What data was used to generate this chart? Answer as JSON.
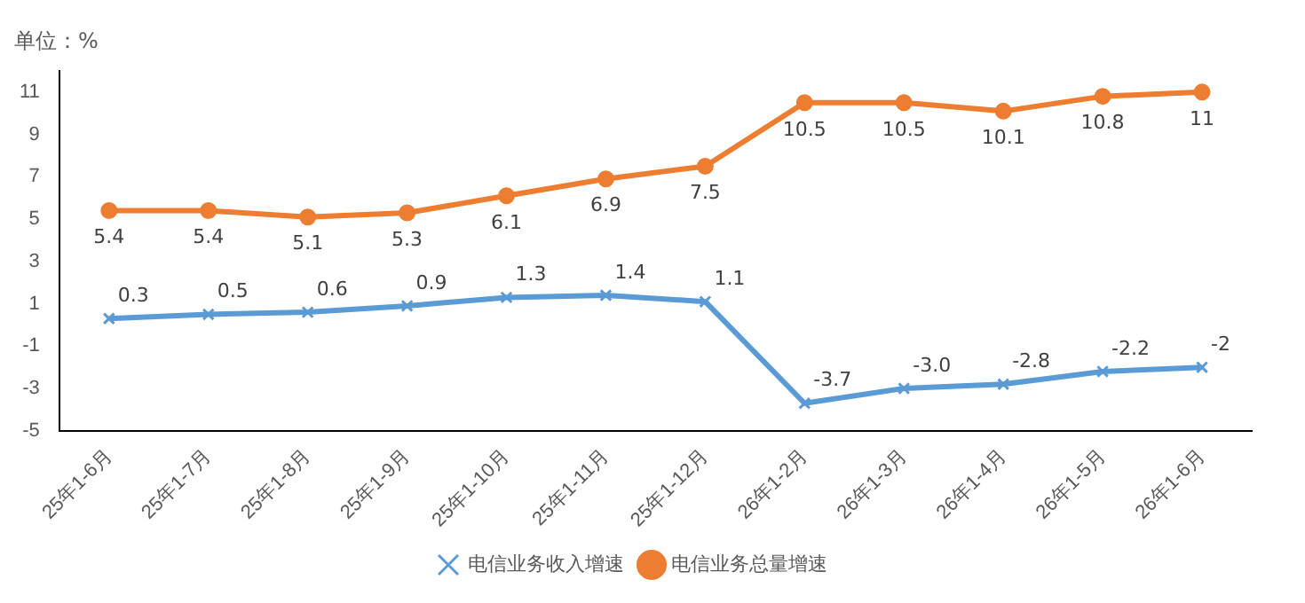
{
  "chart_data": {
    "type": "line",
    "ylabel": "单位：%",
    "categories": [
      "25年1-6月",
      "25年1-7月",
      "25年1-8月",
      "25年1-9月",
      "25年1-10月",
      "25年1-11月",
      "25年1-12月",
      "26年1-2月",
      "26年1-3月",
      "26年1-4月",
      "26年1-5月",
      "26年1-6月"
    ],
    "series": [
      {
        "name": "电信业务收入增速",
        "color": "#5b9bd5",
        "marker": "cross",
        "values": [
          0.3,
          0.5,
          0.6,
          0.9,
          1.3,
          1.4,
          1.1,
          -3.7,
          -3.0,
          -2.8,
          -2.2,
          -2
        ],
        "value_labels": [
          "0.3",
          "0.5",
          "0.6",
          "0.9",
          "1.3",
          "1.4",
          "1.1",
          "-3.7",
          "-3.0",
          "-2.8",
          "-2.2",
          "-2"
        ]
      },
      {
        "name": "电信业务总量增速",
        "color": "#ed7d31",
        "marker": "circle",
        "values": [
          5.4,
          5.4,
          5.1,
          5.3,
          6.1,
          6.9,
          7.5,
          10.5,
          10.5,
          10.1,
          10.8,
          11
        ],
        "value_labels": [
          "5.4",
          "5.4",
          "5.1",
          "5.3",
          "6.1",
          "6.9",
          "7.5",
          "10.5",
          "10.5",
          "10.1",
          "10.8",
          "11"
        ]
      }
    ],
    "ylim": [
      -5,
      12
    ],
    "yticks": [
      -5,
      -3,
      -1,
      1,
      3,
      5,
      7,
      9,
      11
    ],
    "grid": false,
    "legend": "bottom"
  }
}
